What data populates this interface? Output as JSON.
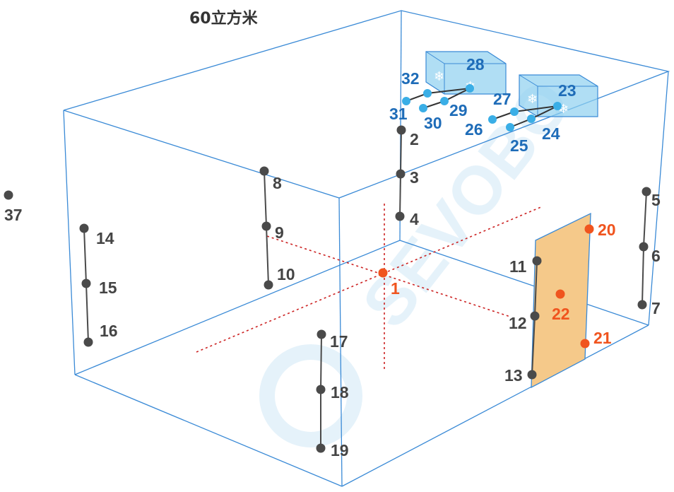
{
  "title": "60立方米",
  "watermark": "SEVOBO",
  "colors": {
    "wall": "#3a8ad6",
    "sensor_gray": "#4a4a4a",
    "sensor_orange": "#f0541e",
    "sensor_blue": "#3aaee6",
    "label_gray": "#444444",
    "label_orange": "#f0541e",
    "label_blue": "#1e6cb8",
    "door_fill": "#f5c98a",
    "ac_fill": "#8fd0f0",
    "axis_line": "#cc2222"
  },
  "sensors": [
    {
      "id": "1",
      "color": "orange"
    },
    {
      "id": "2",
      "color": "gray"
    },
    {
      "id": "3",
      "color": "gray"
    },
    {
      "id": "4",
      "color": "gray"
    },
    {
      "id": "5",
      "color": "gray"
    },
    {
      "id": "6",
      "color": "gray"
    },
    {
      "id": "7",
      "color": "gray"
    },
    {
      "id": "8",
      "color": "gray"
    },
    {
      "id": "9",
      "color": "gray"
    },
    {
      "id": "10",
      "color": "gray"
    },
    {
      "id": "11",
      "color": "gray"
    },
    {
      "id": "12",
      "color": "gray"
    },
    {
      "id": "13",
      "color": "gray"
    },
    {
      "id": "14",
      "color": "gray"
    },
    {
      "id": "15",
      "color": "gray"
    },
    {
      "id": "16",
      "color": "gray"
    },
    {
      "id": "17",
      "color": "gray"
    },
    {
      "id": "18",
      "color": "gray"
    },
    {
      "id": "19",
      "color": "gray"
    },
    {
      "id": "20",
      "color": "orange"
    },
    {
      "id": "21",
      "color": "orange"
    },
    {
      "id": "22",
      "color": "orange"
    },
    {
      "id": "23",
      "color": "blue"
    },
    {
      "id": "24",
      "color": "blue"
    },
    {
      "id": "25",
      "color": "blue"
    },
    {
      "id": "26",
      "color": "blue"
    },
    {
      "id": "27",
      "color": "blue"
    },
    {
      "id": "28",
      "color": "blue"
    },
    {
      "id": "29",
      "color": "blue"
    },
    {
      "id": "30",
      "color": "blue"
    },
    {
      "id": "31",
      "color": "blue"
    },
    {
      "id": "32",
      "color": "blue"
    },
    {
      "id": "37",
      "color": "gray"
    }
  ]
}
